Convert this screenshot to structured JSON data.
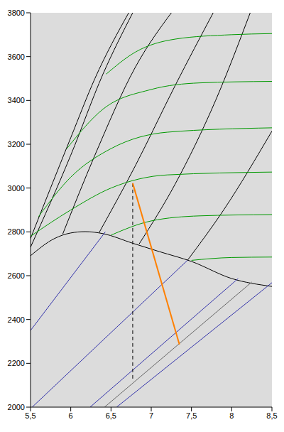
{
  "chart_data": {
    "type": "line",
    "xlim": [
      5.5,
      8.5
    ],
    "ylim": [
      2000,
      3800
    ],
    "xticks": [
      {
        "value": 5.5,
        "label": "5,5"
      },
      6,
      {
        "value": 6.5,
        "label": "6,5"
      },
      7,
      {
        "value": 7.5,
        "label": "7,5"
      },
      8,
      {
        "value": 8.5,
        "label": "8,5"
      }
    ],
    "yticks": [
      2000,
      2200,
      2400,
      2600,
      2800,
      3000,
      3200,
      3400,
      3600,
      3800
    ],
    "grid": false,
    "series": [
      {
        "color": "#000000",
        "line_style": "solid",
        "x": [
          5.5,
          5.8,
          6.0,
          6.18,
          6.4,
          6.77,
          7.1,
          7.5,
          8.0,
          8.5
        ],
        "values": [
          2691,
          2770,
          2795,
          2801,
          2792,
          2748,
          2710,
          2665,
          2587,
          2551
        ]
      },
      {
        "color": "#000000",
        "line_style": "solid",
        "x": [
          5.5,
          6.0,
          6.3,
          6.72
        ],
        "values": [
          2770,
          3230,
          3500,
          3800
        ]
      },
      {
        "color": "#000000",
        "line_style": "solid",
        "x": [
          5.5,
          6.0,
          6.4,
          6.77
        ],
        "values": [
          2730,
          3150,
          3520,
          3800
        ]
      },
      {
        "color": "#000000",
        "line_style": "solid",
        "x": [
          5.9,
          6.3,
          6.8,
          7.25
        ],
        "values": [
          2790,
          3150,
          3550,
          3800
        ]
      },
      {
        "color": "#000000",
        "line_style": "solid",
        "x": [
          6.35,
          6.8,
          7.3,
          7.77
        ],
        "values": [
          2795,
          3100,
          3470,
          3800
        ]
      },
      {
        "color": "#000000",
        "line_style": "solid",
        "x": [
          6.85,
          7.3,
          7.8,
          8.23
        ],
        "values": [
          2745,
          3020,
          3400,
          3800
        ]
      },
      {
        "color": "#000000",
        "line_style": "solid",
        "x": [
          7.45,
          7.9,
          8.5
        ],
        "values": [
          2670,
          2900,
          3260
        ]
      },
      {
        "color": "#009900",
        "line_style": "solid",
        "x": [
          6.44,
          6.8,
          7.3,
          8.0,
          8.5
        ],
        "values": [
          3520,
          3620,
          3680,
          3700,
          3705
        ]
      },
      {
        "color": "#009900",
        "line_style": "solid",
        "x": [
          5.95,
          6.4,
          7.0,
          7.6,
          8.5
        ],
        "values": [
          3180,
          3360,
          3450,
          3480,
          3487
        ]
      },
      {
        "color": "#009900",
        "line_style": "solid",
        "x": [
          5.6,
          6.0,
          6.5,
          7.2,
          8.5
        ],
        "values": [
          2870,
          3050,
          3180,
          3255,
          3275
        ]
      },
      {
        "color": "#009900",
        "line_style": "solid",
        "x": [
          5.5,
          6.0,
          6.5,
          7.2,
          8.5
        ],
        "values": [
          2780,
          2900,
          3000,
          3060,
          3073
        ]
      },
      {
        "color": "#009900",
        "line_style": "solid",
        "x": [
          6.5,
          7.0,
          7.6,
          8.5
        ],
        "values": [
          2785,
          2850,
          2873,
          2879
        ]
      },
      {
        "color": "#009900",
        "line_style": "solid",
        "x": [
          7.5,
          8.0,
          8.5
        ],
        "values": [
          2670,
          2683,
          2685
        ]
      },
      {
        "color": "#3333aa",
        "line_style": "solid",
        "x": [
          5.5,
          6.43
        ],
        "values": [
          2350,
          2800
        ]
      },
      {
        "color": "#3333aa",
        "line_style": "solid",
        "x": [
          5.52,
          7.45
        ],
        "values": [
          2000,
          2670
        ]
      },
      {
        "color": "#3333aa",
        "line_style": "solid",
        "x": [
          6.24,
          8.08
        ],
        "values": [
          2000,
          2587
        ]
      },
      {
        "color": "#3333aa",
        "line_style": "solid",
        "x": [
          6.57,
          8.5
        ],
        "values": [
          2000,
          2568
        ]
      },
      {
        "color": "#666666",
        "line_style": "solid",
        "x": [
          6.42,
          8.25
        ],
        "values": [
          2000,
          2571
        ]
      },
      {
        "color": "#000000",
        "line_style": "dashed",
        "x": [
          6.77,
          6.77
        ],
        "values": [
          3022,
          2117
        ]
      },
      {
        "color": "#ff8000",
        "line_style": "solid",
        "x": [
          6.77,
          7.35
        ],
        "values": [
          3022,
          2286
        ]
      }
    ]
  }
}
